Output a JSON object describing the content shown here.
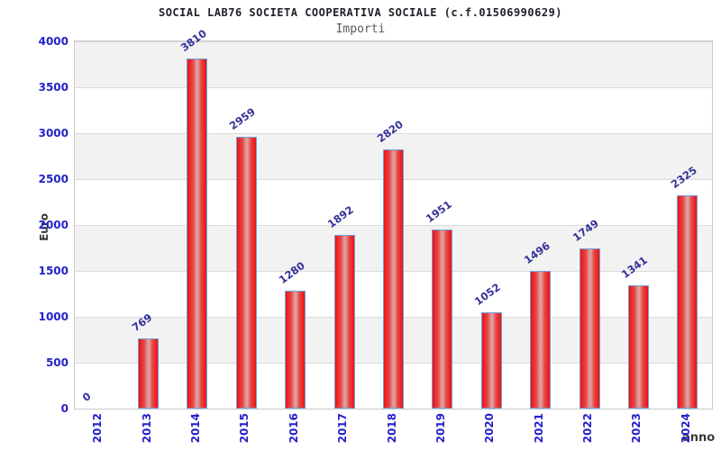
{
  "header": {
    "title": "SOCIAL LAB76 SOCIETA COOPERATIVA SOCIALE (c.f.01506990629)",
    "subtitle": "Importi"
  },
  "chart_data": {
    "type": "bar",
    "title": "SOCIAL LAB76 SOCIETA COOPERATIVA SOCIALE (c.f.01506990629)",
    "subtitle": "Importi",
    "xlabel": "anno",
    "ylabel": "Euro",
    "categories": [
      "2012",
      "2013",
      "2014",
      "2015",
      "2016",
      "2017",
      "2018",
      "2019",
      "2020",
      "2021",
      "2022",
      "2023",
      "2024"
    ],
    "values": [
      0,
      769,
      3810,
      2959,
      1280,
      1892,
      2820,
      1951,
      1052,
      1496,
      1749,
      1341,
      2325
    ],
    "ylim": [
      0,
      4000
    ],
    "yticks": [
      0,
      500,
      1000,
      1500,
      2000,
      2500,
      3000,
      3500,
      4000
    ],
    "grid": "horizontal alternating bands",
    "legend": "none",
    "colors": {
      "bar_fill": "#ec1212",
      "bar_highlight": "#de9c9c",
      "bar_border": "#70a1dc",
      "tick_label": "#2222cc",
      "value_label": "#333399",
      "band_gray": "#f2f2f2",
      "gridline": "#dcdcdc",
      "title_text": "#202028",
      "subtitle_text": "#5a5a5a",
      "axis_title_text": "#3a3a3a"
    }
  }
}
